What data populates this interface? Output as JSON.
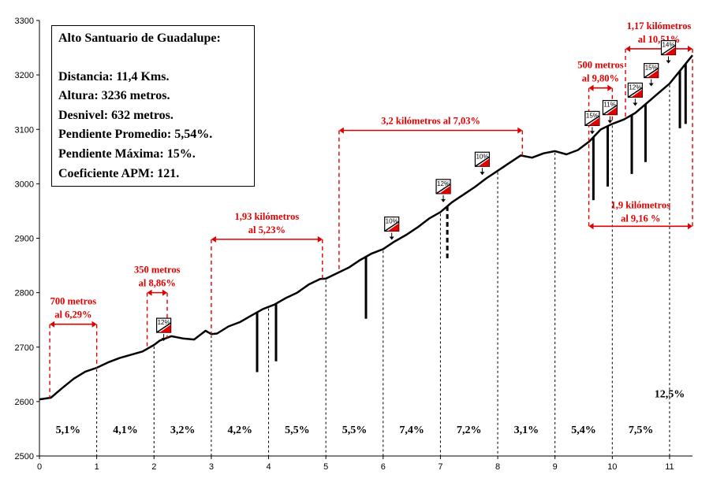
{
  "info": {
    "title": "Alto Santuario de Guadalupe:",
    "lines": [
      "Distancia: 11,4 Kms.",
      "Altura: 3236 metros.",
      "Desnivel: 632 metros.",
      "Pendiente Promedio: 5,54%.",
      "Pendiente Máxima: 15%.",
      "Coeficiente APM: 121."
    ]
  },
  "colors": {
    "profile": "#000000",
    "annotation": "#e00000",
    "axis": "#000000"
  },
  "chart_data": {
    "type": "line",
    "xlim": [
      0,
      11.4
    ],
    "ylim": [
      2500,
      3300
    ],
    "x_ticks": [
      0,
      1,
      2,
      3,
      4,
      5,
      6,
      7,
      8,
      9,
      10,
      11
    ],
    "y_ticks": [
      2500,
      2600,
      2700,
      2800,
      2900,
      3000,
      3100,
      3200,
      3300
    ],
    "grid": false,
    "series": [
      {
        "x": [
          0,
          0.2,
          0.4,
          0.6,
          0.8,
          1.0,
          1.2,
          1.4,
          1.6,
          1.8,
          2.0,
          2.1,
          2.3,
          2.5,
          2.7,
          2.9,
          3.0,
          3.1,
          3.3,
          3.5,
          3.7,
          3.9,
          4.1,
          4.3,
          4.5,
          4.7,
          4.9,
          5.0,
          5.2,
          5.4,
          5.6,
          5.8,
          6.0,
          6.2,
          6.4,
          6.6,
          6.8,
          7.0,
          7.2,
          7.4,
          7.6,
          7.8,
          8.0,
          8.2,
          8.4,
          8.6,
          8.8,
          9.0,
          9.2,
          9.4,
          9.6,
          9.8,
          10.0,
          10.2,
          10.4,
          10.6,
          10.8,
          11.0,
          11.2,
          11.4
        ],
        "y": [
          2604,
          2607,
          2625,
          2642,
          2655,
          2662,
          2672,
          2680,
          2686,
          2692,
          2704,
          2712,
          2720,
          2716,
          2714,
          2730,
          2724,
          2725,
          2738,
          2746,
          2758,
          2770,
          2778,
          2790,
          2800,
          2815,
          2825,
          2826,
          2836,
          2846,
          2860,
          2872,
          2880,
          2894,
          2906,
          2920,
          2936,
          2948,
          2966,
          2980,
          2994,
          3010,
          3024,
          3038,
          3052,
          3048,
          3056,
          3060,
          3054,
          3062,
          3078,
          3100,
          3110,
          3118,
          3130,
          3148,
          3166,
          3184,
          3210,
          3236
        ]
      }
    ],
    "segment_labels": [
      {
        "x": 0.5,
        "text": "5,1%"
      },
      {
        "x": 1.5,
        "text": "4,1%"
      },
      {
        "x": 2.5,
        "text": "3,2%"
      },
      {
        "x": 3.5,
        "text": "4,2%"
      },
      {
        "x": 4.5,
        "text": "5,5%"
      },
      {
        "x": 5.5,
        "text": "5,5%"
      },
      {
        "x": 6.5,
        "text": "7,4%"
      },
      {
        "x": 7.5,
        "text": "7,2%"
      },
      {
        "x": 8.5,
        "text": "3,1%"
      },
      {
        "x": 9.5,
        "text": "5,4%"
      },
      {
        "x": 10.5,
        "text": "7,5%"
      },
      {
        "x": 11.0,
        "y": 2608,
        "text": "12,5%"
      }
    ],
    "annotations": [
      {
        "x0": 0.18,
        "x1": 1.0,
        "y": 2742,
        "lines": [
          "700 metros",
          "al 6,29%"
        ]
      },
      {
        "x0": 1.88,
        "x1": 2.23,
        "y": 2800,
        "lines": [
          "350 metros",
          "al 8,86%"
        ]
      },
      {
        "x0": 3.0,
        "x1": 4.94,
        "y": 2898,
        "lines": [
          "1,93 kilómetros",
          "al 5,23%"
        ]
      },
      {
        "x0": 5.23,
        "x1": 8.43,
        "y": 3098,
        "lines": [
          "3,2 kilómetros al 7,03%"
        ]
      },
      {
        "x0": 9.59,
        "x1": 10.0,
        "y": 3176,
        "lines": [
          "500 metros",
          "al 9,80%"
        ]
      },
      {
        "x0": 10.23,
        "x1": 11.4,
        "y": 3248,
        "lines": [
          "1,17 kilómetros",
          "al 10,51%"
        ]
      },
      {
        "x0": 9.59,
        "x1": 11.4,
        "y": 2922,
        "label_y": 2955,
        "lines": [
          "1,9 kilómetros",
          "al 9,16 %"
        ]
      }
    ],
    "flags": [
      {
        "x": 2.17,
        "y": 2740,
        "text": "12%"
      },
      {
        "x": 6.15,
        "y": 2926,
        "text": "10%"
      },
      {
        "x": 7.05,
        "y": 2995,
        "text": "12%"
      },
      {
        "x": 7.73,
        "y": 3045,
        "text": "10%"
      },
      {
        "x": 9.65,
        "y": 3120,
        "text": "15%"
      },
      {
        "x": 9.96,
        "y": 3140,
        "text": "11%"
      },
      {
        "x": 10.4,
        "y": 3172,
        "text": "12%"
      },
      {
        "x": 10.68,
        "y": 3208,
        "text": "15%"
      },
      {
        "x": 10.98,
        "y": 3250,
        "text": "14%"
      }
    ],
    "gradient_bars": [
      {
        "x": 3.8,
        "y0": 2654
      },
      {
        "x": 4.13,
        "y0": 2674
      },
      {
        "x": 5.7,
        "y0": 2752
      },
      {
        "x": 7.12,
        "y0": 2858,
        "dashed": true
      },
      {
        "x": 9.67,
        "y0": 2970
      },
      {
        "x": 9.92,
        "y0": 2995
      },
      {
        "x": 10.34,
        "y0": 3018
      },
      {
        "x": 10.58,
        "y0": 3040
      },
      {
        "x": 11.18,
        "y0": 3102
      },
      {
        "x": 11.28,
        "y0": 3110
      }
    ]
  }
}
